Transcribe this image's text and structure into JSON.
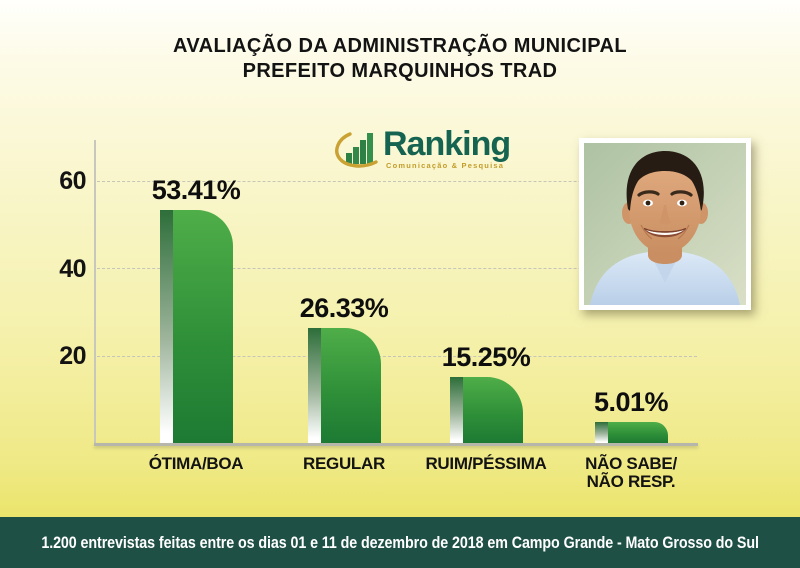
{
  "title": {
    "line1": "AVALIAÇÃO DA ADMINISTRAÇÃO MUNICIPAL",
    "line2": "PREFEITO MARQUINHOS TRAD"
  },
  "logo": {
    "name": "Ranking",
    "tagline": "Comunicação & Pesquisa",
    "wordmark_color": "#156351",
    "tagline_color": "#c39d2b"
  },
  "photo": {
    "alt": "Foto do Prefeito Marquinhos Trad"
  },
  "chart_data": {
    "type": "bar",
    "title": "AVALIAÇÃO DA ADMINISTRAÇÃO MUNICIPAL — PREFEITO MARQUINHOS TRAD",
    "categories": [
      "ÓTIMA/BOA",
      "REGULAR",
      "RUIM/PÉSSIMA",
      "NÃO SABE/\nNÃO RESP."
    ],
    "values": [
      53.41,
      26.33,
      15.25,
      5.01
    ],
    "value_labels": [
      "53.41%",
      "26.33%",
      "15.25%",
      "5.01%"
    ],
    "yticks": [
      20,
      40,
      60
    ],
    "ylim": [
      0,
      65
    ],
    "xlabel": "",
    "ylabel": "",
    "grid": "horizontal-dashed",
    "legend": "none",
    "bar_color_top": "#4fae48",
    "bar_color_bottom": "#1d7a33",
    "bar_highlight": "dark-green-to-white left strip"
  },
  "footer": {
    "text": "1.200 entrevistas feitas entre os dias 01 e 11 de dezembro de 2018 em Campo Grande - Mato Grosso do Sul",
    "background": "#1e5046"
  }
}
